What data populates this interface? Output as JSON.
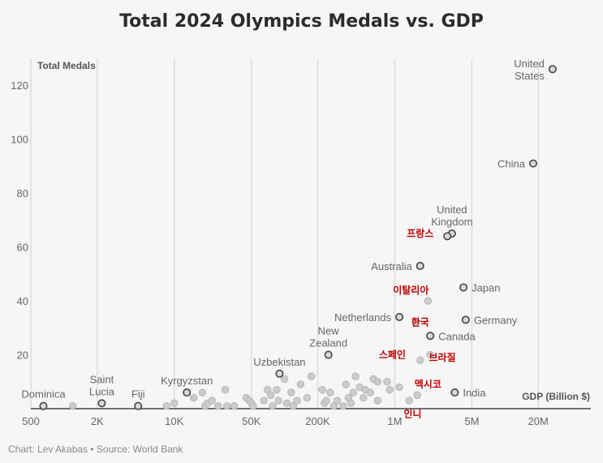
{
  "title": "Total 2024 Olympics Medals vs. GDP",
  "footer": "Chart: Lev Akabas • Source: World Bank",
  "chart_data": {
    "type": "scatter",
    "title": "Total 2024 Olympics Medals vs. GDP",
    "xlabel": "GDP (Billion $)",
    "ylabel": "Total Medals",
    "x_scale": "log",
    "xlim": [
      500,
      60000000
    ],
    "ylim": [
      0,
      130
    ],
    "x_ticks": [
      {
        "value": 500,
        "label": "500"
      },
      {
        "value": 2000,
        "label": "2K"
      },
      {
        "value": 10000,
        "label": "10K"
      },
      {
        "value": 50000,
        "label": "50K"
      },
      {
        "value": 200000,
        "label": "200K"
      },
      {
        "value": 1000000,
        "label": "1M"
      },
      {
        "value": 5000000,
        "label": "5M"
      },
      {
        "value": 20000000,
        "label": "20M"
      }
    ],
    "y_ticks": [
      20,
      40,
      60,
      80,
      100,
      120
    ],
    "grid": "vertical",
    "colors": {
      "labeled_point": "#666666",
      "other_point": "#cccccc",
      "highlight_label": "#c00000"
    },
    "labeled_points": [
      {
        "label": "United States",
        "lines": [
          "United",
          "States"
        ],
        "x": 27000000,
        "y": 126,
        "anchor": "left"
      },
      {
        "label": "China",
        "lines": [
          "China"
        ],
        "x": 18000000,
        "y": 91,
        "anchor": "left"
      },
      {
        "label": "United Kingdom",
        "lines": [
          "United",
          "Kingdom"
        ],
        "x": 3300000,
        "y": 65,
        "anchor": "above"
      },
      {
        "label": "Australia",
        "lines": [
          "Australia"
        ],
        "x": 1700000,
        "y": 53,
        "anchor": "left"
      },
      {
        "label": "Japan",
        "lines": [
          "Japan"
        ],
        "x": 4200000,
        "y": 45,
        "anchor": "right"
      },
      {
        "label": "Netherlands",
        "lines": [
          "Netherlands"
        ],
        "x": 1100000,
        "y": 34,
        "anchor": "left"
      },
      {
        "label": "Germany",
        "lines": [
          "Germany"
        ],
        "x": 4400000,
        "y": 33,
        "anchor": "right"
      },
      {
        "label": "Canada",
        "lines": [
          "Canada"
        ],
        "x": 2100000,
        "y": 27,
        "anchor": "right"
      },
      {
        "label": "New Zealand",
        "lines": [
          "New",
          "Zealand"
        ],
        "x": 250000,
        "y": 20,
        "anchor": "above"
      },
      {
        "label": "Uzbekistan",
        "lines": [
          "Uzbekistan"
        ],
        "x": 90000,
        "y": 13,
        "anchor": "above"
      },
      {
        "label": "Kyrgyzstan",
        "lines": [
          "Kyrgyzstan"
        ],
        "x": 13000,
        "y": 6,
        "anchor": "above"
      },
      {
        "label": "Saint Lucia",
        "lines": [
          "Saint",
          "Lucia"
        ],
        "x": 2200,
        "y": 2,
        "anchor": "above"
      },
      {
        "label": "Fiji",
        "lines": [
          "Fiji"
        ],
        "x": 4700,
        "y": 1,
        "anchor": "above"
      },
      {
        "label": "Dominica",
        "lines": [
          "Dominica"
        ],
        "x": 650,
        "y": 1,
        "anchor": "above"
      },
      {
        "label": "India",
        "lines": [
          "India"
        ],
        "x": 3500000,
        "y": 6,
        "anchor": "right"
      },
      {
        "label": "France",
        "lines": [],
        "x": 3000000,
        "y": 64,
        "anchor": "none"
      }
    ],
    "highlight_labels": [
      {
        "text": "프랑스",
        "x": 1700000,
        "y": 65
      },
      {
        "text": "이탈리아",
        "x": 1400000,
        "y": 44
      },
      {
        "text": "한국",
        "x": 1700000,
        "y": 32
      },
      {
        "text": "스페인",
        "x": 950000,
        "y": 20
      },
      {
        "text": "브라질",
        "x": 2700000,
        "y": 19
      },
      {
        "text": "멕시코",
        "x": 2000000,
        "y": 9
      },
      {
        "text": "인니",
        "x": 1450000,
        "y": -2
      }
    ],
    "other_points": [
      [
        1200,
        1
      ],
      [
        8500,
        1
      ],
      [
        10000,
        2
      ],
      [
        15000,
        4
      ],
      [
        18000,
        6
      ],
      [
        19000,
        1
      ],
      [
        20000,
        2
      ],
      [
        22000,
        3
      ],
      [
        25000,
        1
      ],
      [
        29000,
        7
      ],
      [
        30000,
        1
      ],
      [
        35000,
        1
      ],
      [
        45000,
        4
      ],
      [
        48000,
        3
      ],
      [
        50000,
        2
      ],
      [
        52000,
        1
      ],
      [
        65000,
        3
      ],
      [
        70000,
        7
      ],
      [
        75000,
        5
      ],
      [
        78000,
        1
      ],
      [
        85000,
        7
      ],
      [
        88000,
        3
      ],
      [
        100000,
        11
      ],
      [
        105000,
        2
      ],
      [
        115000,
        6
      ],
      [
        120000,
        1
      ],
      [
        130000,
        3
      ],
      [
        140000,
        9
      ],
      [
        160000,
        4
      ],
      [
        175000,
        12
      ],
      [
        220000,
        7
      ],
      [
        230000,
        2
      ],
      [
        240000,
        3
      ],
      [
        260000,
        6
      ],
      [
        280000,
        1
      ],
      [
        300000,
        3
      ],
      [
        340000,
        1
      ],
      [
        360000,
        9
      ],
      [
        380000,
        4
      ],
      [
        400000,
        2
      ],
      [
        420000,
        6
      ],
      [
        440000,
        12
      ],
      [
        480000,
        8
      ],
      [
        520000,
        4
      ],
      [
        540000,
        7
      ],
      [
        600000,
        6
      ],
      [
        640000,
        11
      ],
      [
        700000,
        10
      ],
      [
        700000,
        3
      ],
      [
        850000,
        10
      ],
      [
        900000,
        7
      ],
      [
        1100000,
        8
      ],
      [
        1350000,
        3
      ],
      [
        1550000,
        32
      ],
      [
        1600000,
        5
      ],
      [
        2000000,
        40
      ],
      [
        2100000,
        20
      ],
      [
        1700000,
        18
      ]
    ]
  }
}
